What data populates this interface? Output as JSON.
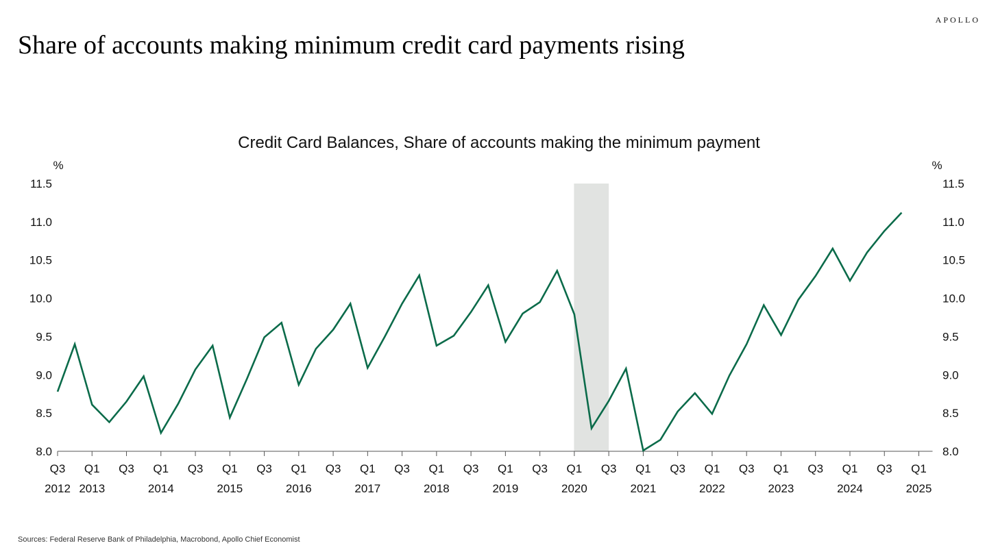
{
  "brand": "APOLLO",
  "headline": "Share of accounts making minimum credit card payments rising",
  "footer": "Sources: Federal Reserve Bank of Philadelphia, Macrobond, Apollo Chief Economist",
  "colors": {
    "line": "#0b6b4a",
    "recession": "#e1e3e1",
    "axis": "#555555"
  },
  "chart_data": {
    "type": "line",
    "title": "Credit Card Balances, Share of accounts making the minimum payment",
    "ylabel_left": "%",
    "ylabel_right": "%",
    "ylim": [
      8.0,
      11.5
    ],
    "yticks": [
      8.0,
      8.5,
      9.0,
      9.5,
      10.0,
      10.5,
      11.0,
      11.5
    ],
    "ytick_labels": [
      "8.0",
      "8.5",
      "9.0",
      "9.5",
      "10.0",
      "10.5",
      "11.0",
      "11.5"
    ],
    "grid": false,
    "legend": "none",
    "x_ticks": [
      {
        "q": "Q3",
        "year": "2012"
      },
      {
        "q": "Q1",
        "year": "2013"
      },
      {
        "q": "Q3",
        "year": ""
      },
      {
        "q": "Q1",
        "year": "2014"
      },
      {
        "q": "Q3",
        "year": ""
      },
      {
        "q": "Q1",
        "year": "2015"
      },
      {
        "q": "Q3",
        "year": ""
      },
      {
        "q": "Q1",
        "year": "2016"
      },
      {
        "q": "Q3",
        "year": ""
      },
      {
        "q": "Q1",
        "year": "2017"
      },
      {
        "q": "Q3",
        "year": ""
      },
      {
        "q": "Q1",
        "year": "2018"
      },
      {
        "q": "Q3",
        "year": ""
      },
      {
        "q": "Q1",
        "year": "2019"
      },
      {
        "q": "Q3",
        "year": ""
      },
      {
        "q": "Q1",
        "year": "2020"
      },
      {
        "q": "Q3",
        "year": ""
      },
      {
        "q": "Q1",
        "year": "2021"
      },
      {
        "q": "Q3",
        "year": ""
      },
      {
        "q": "Q1",
        "year": "2022"
      },
      {
        "q": "Q3",
        "year": ""
      },
      {
        "q": "Q1",
        "year": "2023"
      },
      {
        "q": "Q3",
        "year": ""
      },
      {
        "q": "Q1",
        "year": "2024"
      },
      {
        "q": "Q3",
        "year": ""
      },
      {
        "q": "Q1",
        "year": "2025"
      }
    ],
    "recession": {
      "start": "2020-Q1",
      "end": "2020-Q2"
    },
    "x": [
      "2012-Q3",
      "2012-Q4",
      "2013-Q1",
      "2013-Q2",
      "2013-Q3",
      "2013-Q4",
      "2014-Q1",
      "2014-Q2",
      "2014-Q3",
      "2014-Q4",
      "2015-Q1",
      "2015-Q2",
      "2015-Q3",
      "2015-Q4",
      "2016-Q1",
      "2016-Q2",
      "2016-Q3",
      "2016-Q4",
      "2017-Q1",
      "2017-Q2",
      "2017-Q3",
      "2017-Q4",
      "2018-Q1",
      "2018-Q2",
      "2018-Q3",
      "2018-Q4",
      "2019-Q1",
      "2019-Q2",
      "2019-Q3",
      "2019-Q4",
      "2020-Q1",
      "2020-Q2",
      "2020-Q3",
      "2020-Q4",
      "2021-Q1",
      "2021-Q2",
      "2021-Q3",
      "2021-Q4",
      "2022-Q1",
      "2022-Q2",
      "2022-Q3",
      "2022-Q4",
      "2023-Q1",
      "2023-Q2",
      "2023-Q3",
      "2023-Q4",
      "2024-Q1",
      "2024-Q2",
      "2024-Q3",
      "2024-Q4"
    ],
    "series": [
      {
        "values": [
          8.78,
          9.4,
          8.61,
          8.38,
          8.65,
          8.98,
          8.24,
          8.62,
          9.07,
          9.38,
          8.44,
          8.95,
          9.49,
          9.68,
          8.87,
          9.34,
          9.59,
          9.93,
          9.09,
          9.5,
          9.93,
          10.3,
          9.38,
          9.51,
          9.82,
          10.17,
          9.43,
          9.8,
          9.95,
          10.36,
          9.79,
          8.3,
          8.66,
          9.08,
          8.01,
          8.15,
          8.52,
          8.76,
          8.49,
          8.99,
          9.4,
          9.91,
          9.52,
          9.98,
          10.29,
          10.65,
          10.23,
          10.6,
          10.88,
          11.12
        ]
      }
    ]
  }
}
